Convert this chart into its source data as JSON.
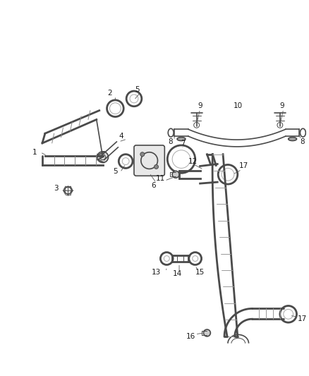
{
  "bg_color": "#ffffff",
  "line_color": "#4a4a4a",
  "label_color": "#1a1a1a",
  "fig_width": 4.38,
  "fig_height": 5.33,
  "dpi": 100
}
